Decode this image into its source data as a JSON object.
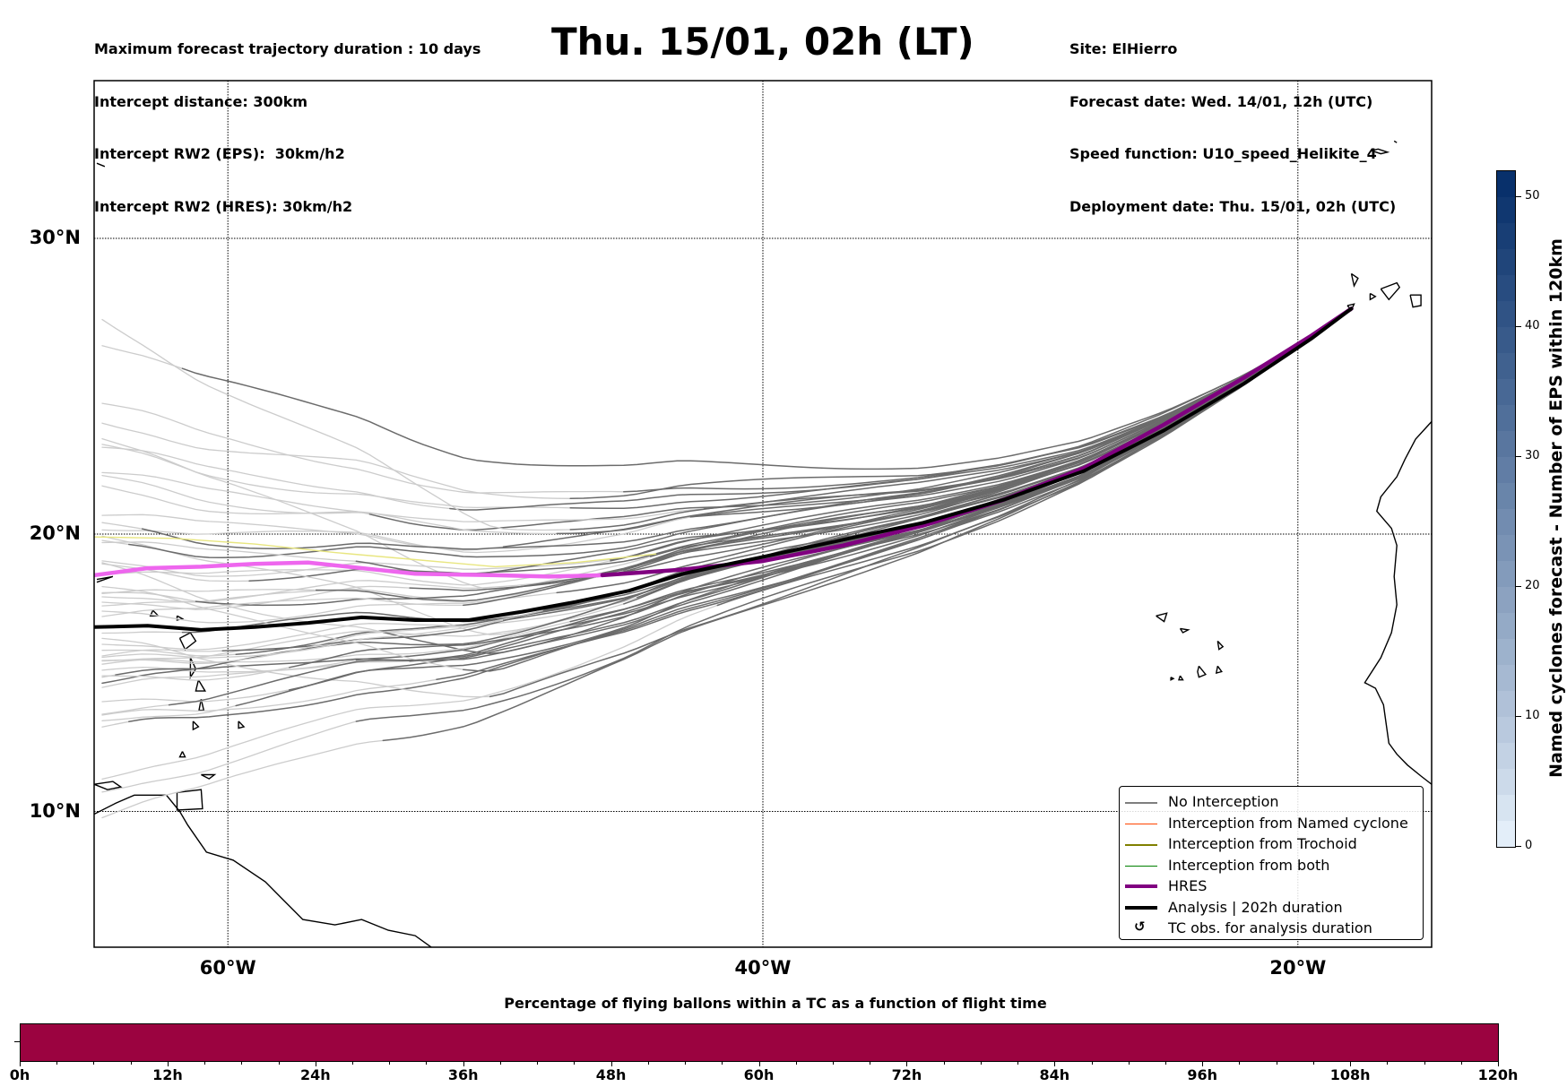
{
  "header": {
    "left_lines": [
      "Maximum forecast trajectory duration : 10 days",
      "Intercept distance: 300km",
      "Intercept RW2 (EPS):  30km/h2",
      "Intercept RW2 (HRES): 30km/h2"
    ],
    "title": "Thu. 15/01, 02h (LT)",
    "right_lines": [
      "Site: ElHierro",
      "Forecast date: Wed. 14/01, 12h (UTC)",
      "Speed function: U10_speed_Helikite_4",
      "Deployment date: Thu. 15/01, 02h (UTC)"
    ]
  },
  "map": {
    "lon_range": [
      -65,
      -15
    ],
    "lat_range": [
      5,
      35
    ],
    "lon_ticks": [
      {
        "value": -60,
        "label": "60°W"
      },
      {
        "value": -40,
        "label": "40°W"
      },
      {
        "value": -20,
        "label": "20°W"
      }
    ],
    "lat_ticks": [
      {
        "value": 30,
        "label": "30°N"
      },
      {
        "value": 20,
        "label": "20°N"
      },
      {
        "value": 10,
        "label": "10°N"
      }
    ],
    "launch_site": {
      "name": "ElHierro",
      "lon": -18.0,
      "lat": 27.7
    },
    "colors": {
      "no_interception_recent": "#6b6b6b",
      "no_interception_old": "#cccccc",
      "named_cyclone": "#ff4500",
      "trochoid": "#808000",
      "both": "#008000",
      "hres": "#800080",
      "hres_old": "#ee66ee",
      "analysis": "#000000",
      "trochoid_old": "#e8e680"
    },
    "analysis_path": [
      [
        -18.0,
        27.7
      ],
      [
        -19.5,
        26.7
      ],
      [
        -22,
        25.2
      ],
      [
        -25,
        23.6
      ],
      [
        -28,
        22.2
      ],
      [
        -31,
        21.2
      ],
      [
        -34,
        20.4
      ],
      [
        -37,
        19.8
      ],
      [
        -40,
        19.2
      ],
      [
        -43,
        18.6
      ],
      [
        -45,
        18.0
      ],
      [
        -47,
        17.6
      ],
      [
        -49,
        17.25
      ],
      [
        -51,
        16.95
      ],
      [
        -53,
        16.95
      ],
      [
        -55,
        17.05
      ],
      [
        -57,
        16.85
      ],
      [
        -59,
        16.7
      ],
      [
        -61,
        16.6
      ],
      [
        -63,
        16.75
      ],
      [
        -65,
        16.7
      ]
    ],
    "hres_path": [
      [
        -18.0,
        27.7
      ],
      [
        -19.5,
        26.8
      ],
      [
        -22,
        25.4
      ],
      [
        -25,
        23.8
      ],
      [
        -28,
        22.3
      ],
      [
        -31,
        21.2
      ],
      [
        -34,
        20.3
      ],
      [
        -37,
        19.6
      ],
      [
        -40,
        19.05
      ],
      [
        -43,
        18.75
      ],
      [
        -46,
        18.55
      ],
      [
        -48,
        18.5
      ],
      [
        -50,
        18.55
      ],
      [
        -53,
        18.6
      ],
      [
        -55,
        18.8
      ],
      [
        -57,
        19.0
      ],
      [
        -59,
        18.95
      ],
      [
        -61,
        18.85
      ],
      [
        -63,
        18.8
      ],
      [
        -65,
        18.55
      ]
    ],
    "hres_recent_until_lon": -46,
    "trochoid_old_path": [
      [
        -44,
        19.3
      ],
      [
        -47,
        19.0
      ],
      [
        -50,
        18.85
      ],
      [
        -53,
        19.1
      ],
      [
        -56,
        19.35
      ],
      [
        -59,
        19.65
      ],
      [
        -62,
        19.85
      ],
      [
        -65,
        19.9
      ]
    ],
    "ensemble_spread": {
      "members": 50,
      "lat_spread_deg_at_west": 6.5
    },
    "legend": [
      {
        "label": "No Interception",
        "style": "thin",
        "color": "#7f7f7f"
      },
      {
        "label": "Interception from Named cyclone",
        "style": "thin",
        "color": "#ff4500"
      },
      {
        "label": "Interception from Trochoid",
        "style": "thin",
        "color": "#808000"
      },
      {
        "label": "Interception from both",
        "style": "thin",
        "color": "#008000"
      },
      {
        "label": "HRES",
        "style": "thick",
        "color": "#800080"
      },
      {
        "label": "Analysis | 202h duration",
        "style": "thick",
        "color": "#000000"
      },
      {
        "label": "TC obs. for analysis duration",
        "style": "marker",
        "color": "#000000",
        "glyph": "↺"
      }
    ]
  },
  "colorbar": {
    "title": "Named cyclones forecast - Number of EPS within 120km",
    "min": 0,
    "max": 52,
    "ticks": [
      0,
      10,
      20,
      30,
      40,
      50
    ],
    "color_low": "#e3eef9",
    "color_high": "#08306b"
  },
  "bottom_bar": {
    "title": "Percentage of flying ballons within a TC as a function of flight time",
    "fill_color": "#9b0340",
    "range_hours": [
      0,
      120
    ],
    "major_ticks": [
      "0h",
      "12h",
      "24h",
      "36h",
      "48h",
      "60h",
      "72h",
      "84h",
      "96h",
      "108h",
      "120h"
    ],
    "minor_step_hours": 3
  }
}
